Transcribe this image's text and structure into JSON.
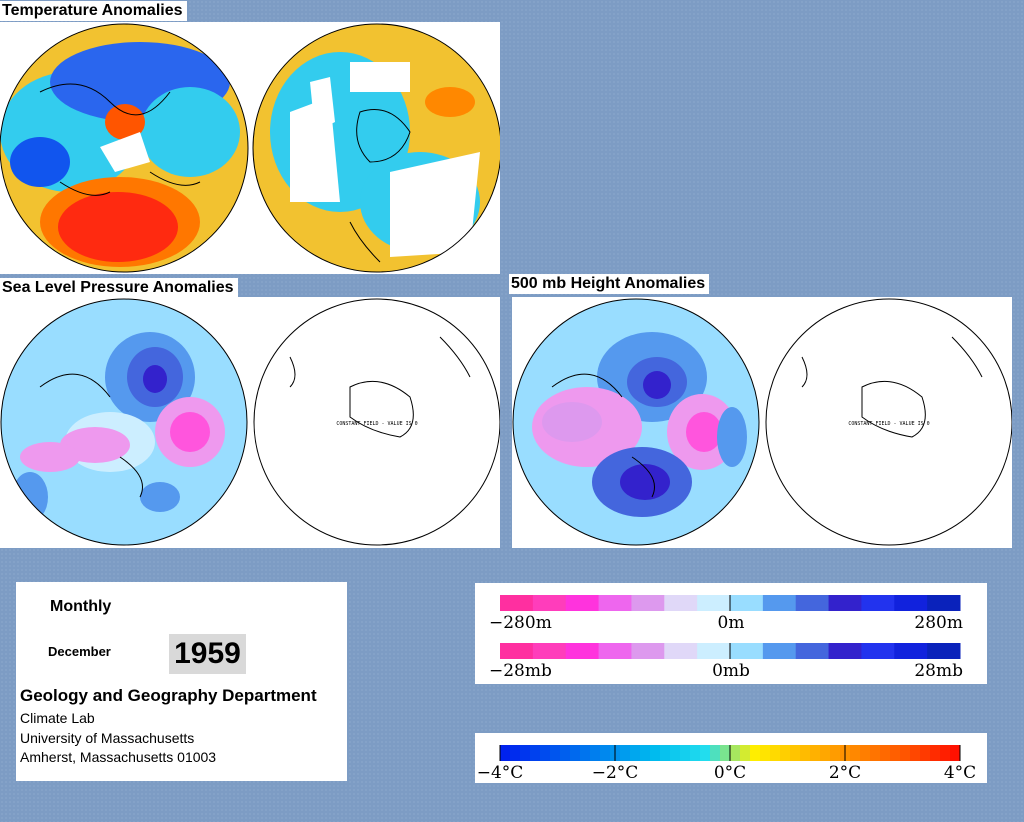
{
  "sections": {
    "temperature_title": "Temperature Anomalies",
    "slp_title": "Sea Level Pressure Anomalies",
    "height_title": "500 mb Height Anomalies"
  },
  "maps": {
    "constant_field_label": "CONSTANT FIELD - VALUE IS 0"
  },
  "info": {
    "period": "Monthly",
    "month": "December",
    "year": "1959",
    "department": "Geology and Geography Department",
    "lab": "Climate Lab",
    "university": "University of Massachusetts",
    "address": "Amherst, Massachusetts 01003"
  },
  "legends": {
    "height": {
      "min": "−280m",
      "mid": "0m",
      "max": "280m"
    },
    "pressure": {
      "min": "−28mb",
      "mid": "0mb",
      "max": "28mb"
    },
    "temperature": {
      "labels": [
        "−4°C",
        "−2°C",
        "0°C",
        "2°C",
        "4°C"
      ]
    }
  },
  "colors": {
    "background": "#7d9cc4",
    "anomaly_scale": [
      "#ff2fa0",
      "#ff3dbb",
      "#ff33dd",
      "#ee66ee",
      "#dd99ee",
      "#e0d8f8",
      "#cceeff",
      "#99ddff",
      "#5599ee",
      "#4466dd",
      "#3322cc",
      "#2233ee",
      "#1122dd",
      "#0a22bb"
    ],
    "temperature_scale": [
      "#0022ee",
      "#0055ee",
      "#0088ee",
      "#00bbee",
      "#22ddee",
      "#ffee00",
      "#ffbb00",
      "#ff8800",
      "#ff5500",
      "#ff1100"
    ]
  }
}
